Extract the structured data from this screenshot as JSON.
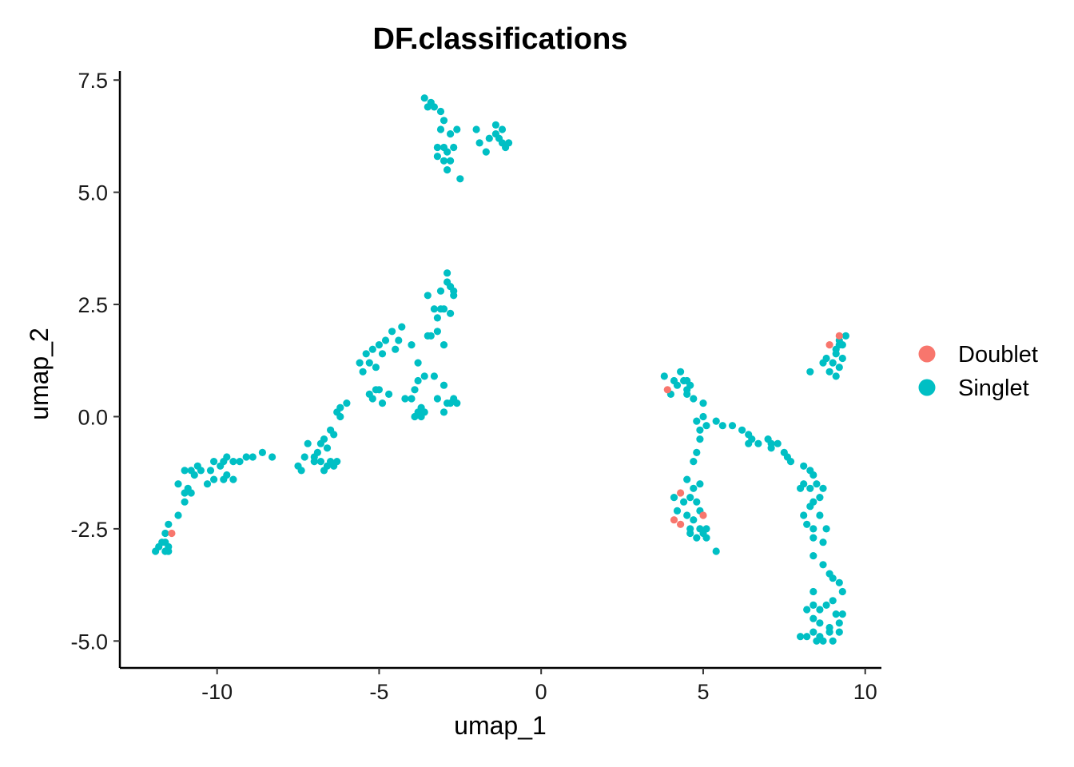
{
  "chart_data": {
    "type": "scatter",
    "title": "DF.classifications",
    "xlabel": "umap_1",
    "ylabel": "umap_2",
    "xlim": [
      -13.0,
      10.5
    ],
    "ylim": [
      -5.6,
      7.7
    ],
    "xticks": [
      -10,
      -5,
      0,
      5,
      10
    ],
    "xtick_labels": [
      "-10",
      "-5",
      "0",
      "5",
      "10"
    ],
    "yticks": [
      -5.0,
      -2.5,
      0.0,
      2.5,
      5.0,
      7.5
    ],
    "ytick_labels": [
      "-5.0",
      "-2.5",
      "0.0",
      "2.5",
      "5.0",
      "7.5"
    ],
    "grid": false,
    "legend_position": "right",
    "series": [
      {
        "name": "Doublet",
        "color": "#F8766D",
        "points": [
          [
            -11.4,
            -2.6
          ],
          [
            3.9,
            0.6
          ],
          [
            9.2,
            1.8
          ],
          [
            8.9,
            1.6
          ],
          [
            4.3,
            -1.7
          ],
          [
            4.1,
            -2.3
          ],
          [
            4.3,
            -2.4
          ],
          [
            5.0,
            -2.2
          ]
        ]
      },
      {
        "name": "Singlet",
        "color": "#00BFC4",
        "points": [
          [
            -3.6,
            7.1
          ],
          [
            -3.4,
            7.0
          ],
          [
            -3.5,
            6.9
          ],
          [
            -3.3,
            6.9
          ],
          [
            -3.1,
            6.8
          ],
          [
            -3.0,
            6.6
          ],
          [
            -3.1,
            6.4
          ],
          [
            -2.8,
            6.3
          ],
          [
            -2.6,
            6.4
          ],
          [
            -3.0,
            6.0
          ],
          [
            -3.2,
            6.0
          ],
          [
            -2.9,
            5.9
          ],
          [
            -2.7,
            6.0
          ],
          [
            -3.2,
            5.8
          ],
          [
            -3.0,
            5.7
          ],
          [
            -2.8,
            5.7
          ],
          [
            -2.9,
            5.5
          ],
          [
            -2.5,
            5.3
          ],
          [
            -2.0,
            6.4
          ],
          [
            -1.9,
            6.1
          ],
          [
            -1.7,
            5.9
          ],
          [
            -1.6,
            6.2
          ],
          [
            -1.4,
            6.3
          ],
          [
            -1.3,
            6.2
          ],
          [
            -1.4,
            6.5
          ],
          [
            -1.2,
            6.1
          ],
          [
            -1.0,
            6.1
          ],
          [
            -1.1,
            6.0
          ],
          [
            -1.2,
            6.4
          ],
          [
            -2.9,
            3.2
          ],
          [
            -2.9,
            3.0
          ],
          [
            -2.8,
            2.9
          ],
          [
            -2.7,
            2.8
          ],
          [
            -3.1,
            2.8
          ],
          [
            -2.7,
            2.7
          ],
          [
            -3.5,
            2.7
          ],
          [
            -3.3,
            2.4
          ],
          [
            -3.1,
            2.4
          ],
          [
            -3.0,
            2.4
          ],
          [
            -2.8,
            2.3
          ],
          [
            -3.2,
            2.2
          ],
          [
            -3.2,
            1.9
          ],
          [
            -3.4,
            1.8
          ],
          [
            -4.3,
            2.0
          ],
          [
            -4.6,
            1.9
          ],
          [
            -4.8,
            1.7
          ],
          [
            -5.0,
            1.6
          ],
          [
            -5.2,
            1.5
          ],
          [
            -5.4,
            1.4
          ],
          [
            -4.4,
            1.7
          ],
          [
            -4.0,
            1.6
          ],
          [
            -3.5,
            1.8
          ],
          [
            -3.0,
            1.6
          ],
          [
            -4.9,
            1.4
          ],
          [
            -5.6,
            1.2
          ],
          [
            -5.3,
            1.2
          ],
          [
            -5.1,
            1.1
          ],
          [
            -5.5,
            1.0
          ],
          [
            -4.5,
            1.5
          ],
          [
            -3.8,
            1.2
          ],
          [
            -3.6,
            0.9
          ],
          [
            -3.8,
            0.8
          ],
          [
            -3.3,
            0.9
          ],
          [
            -3.0,
            0.7
          ],
          [
            -3.9,
            0.6
          ],
          [
            -4.2,
            0.4
          ],
          [
            -4.0,
            0.4
          ],
          [
            -4.7,
            0.5
          ],
          [
            -5.0,
            0.6
          ],
          [
            -5.3,
            0.5
          ],
          [
            -5.1,
            0.6
          ],
          [
            -5.2,
            0.4
          ],
          [
            -4.9,
            0.3
          ],
          [
            -3.6,
            0.1
          ],
          [
            -3.7,
            0.2
          ],
          [
            -3.8,
            0.1
          ],
          [
            -3.9,
            0.0
          ],
          [
            -3.7,
            0.0
          ],
          [
            -2.9,
            0.3
          ],
          [
            -2.8,
            0.3
          ],
          [
            -2.6,
            0.3
          ],
          [
            -3.0,
            0.1
          ],
          [
            -3.2,
            0.4
          ],
          [
            -2.7,
            0.4
          ],
          [
            -6.2,
            0.2
          ],
          [
            -6.0,
            0.3
          ],
          [
            -6.3,
            0.1
          ],
          [
            -6.2,
            0.0
          ],
          [
            -6.5,
            -0.3
          ],
          [
            -6.4,
            -0.4
          ],
          [
            -6.7,
            -0.5
          ],
          [
            -6.8,
            -0.6
          ],
          [
            -6.6,
            -0.7
          ],
          [
            -6.9,
            -0.8
          ],
          [
            -7.2,
            -0.6
          ],
          [
            -7.0,
            -0.9
          ],
          [
            -6.8,
            -1.0
          ],
          [
            -6.6,
            -1.1
          ],
          [
            -6.5,
            -1.0
          ],
          [
            -6.4,
            -1.1
          ],
          [
            -6.7,
            -1.2
          ],
          [
            -6.3,
            -1.0
          ],
          [
            -7.3,
            -0.9
          ],
          [
            -7.0,
            -1.0
          ],
          [
            -7.5,
            -1.1
          ],
          [
            -7.4,
            -1.2
          ],
          [
            -8.3,
            -0.9
          ],
          [
            -8.6,
            -0.8
          ],
          [
            -8.9,
            -0.9
          ],
          [
            -9.1,
            -0.9
          ],
          [
            -9.3,
            -1.0
          ],
          [
            -9.5,
            -1.0
          ],
          [
            -9.7,
            -0.9
          ],
          [
            -9.8,
            -1.0
          ],
          [
            -9.9,
            -1.1
          ],
          [
            -10.1,
            -1.0
          ],
          [
            -10.2,
            -1.2
          ],
          [
            -10.5,
            -1.2
          ],
          [
            -10.6,
            -1.1
          ],
          [
            -10.8,
            -1.2
          ],
          [
            -11.0,
            -1.2
          ],
          [
            -10.7,
            -1.3
          ],
          [
            -9.7,
            -1.3
          ],
          [
            -9.8,
            -1.4
          ],
          [
            -9.5,
            -1.4
          ],
          [
            -10.1,
            -1.4
          ],
          [
            -10.3,
            -1.5
          ],
          [
            -11.2,
            -1.5
          ],
          [
            -11.0,
            -1.7
          ],
          [
            -10.9,
            -1.6
          ],
          [
            -10.8,
            -1.7
          ],
          [
            -11.0,
            -1.9
          ],
          [
            -11.2,
            -2.2
          ],
          [
            -11.5,
            -2.4
          ],
          [
            -11.6,
            -2.6
          ],
          [
            -11.6,
            -2.8
          ],
          [
            -11.5,
            -2.9
          ],
          [
            -11.7,
            -2.8
          ],
          [
            -11.8,
            -2.9
          ],
          [
            -11.6,
            -3.0
          ],
          [
            -11.5,
            -3.0
          ],
          [
            -11.9,
            -3.0
          ],
          [
            3.8,
            0.9
          ],
          [
            4.3,
            1.0
          ],
          [
            4.1,
            0.8
          ],
          [
            4.2,
            0.7
          ],
          [
            4.4,
            0.8
          ],
          [
            4.5,
            0.6
          ],
          [
            4.6,
            0.7
          ],
          [
            4.0,
            0.5
          ],
          [
            4.5,
            0.5
          ],
          [
            4.7,
            0.4
          ],
          [
            4.5,
            0.8
          ],
          [
            5.0,
            0.3
          ],
          [
            4.8,
            -0.1
          ],
          [
            5.0,
            0.0
          ],
          [
            5.1,
            -0.2
          ],
          [
            5.4,
            -0.1
          ],
          [
            5.6,
            -0.2
          ],
          [
            5.9,
            -0.2
          ],
          [
            6.2,
            -0.3
          ],
          [
            6.4,
            -0.4
          ],
          [
            6.5,
            -0.5
          ],
          [
            6.4,
            -0.6
          ],
          [
            6.7,
            -0.6
          ],
          [
            7.0,
            -0.5
          ],
          [
            7.1,
            -0.6
          ],
          [
            7.3,
            -0.6
          ],
          [
            7.1,
            -0.7
          ],
          [
            7.5,
            -0.8
          ],
          [
            7.6,
            -0.9
          ],
          [
            7.7,
            -1.0
          ],
          [
            8.1,
            -1.1
          ],
          [
            8.3,
            -1.2
          ],
          [
            8.4,
            -1.3
          ],
          [
            8.5,
            -1.5
          ],
          [
            8.3,
            -1.6
          ],
          [
            8.1,
            -1.5
          ],
          [
            8.0,
            -1.6
          ],
          [
            8.7,
            -1.6
          ],
          [
            8.6,
            -1.8
          ],
          [
            8.4,
            -1.9
          ],
          [
            8.3,
            -2.0
          ],
          [
            8.1,
            -2.2
          ],
          [
            8.6,
            -2.2
          ],
          [
            8.4,
            -2.5
          ],
          [
            8.8,
            -2.5
          ],
          [
            8.2,
            -2.4
          ],
          [
            8.4,
            -2.7
          ],
          [
            8.7,
            -2.8
          ],
          [
            8.4,
            -3.1
          ],
          [
            8.7,
            -3.3
          ],
          [
            8.9,
            -3.5
          ],
          [
            9.0,
            -3.6
          ],
          [
            9.2,
            -3.7
          ],
          [
            9.3,
            -3.9
          ],
          [
            9.0,
            -4.1
          ],
          [
            8.8,
            -4.2
          ],
          [
            8.6,
            -4.3
          ],
          [
            8.4,
            -4.2
          ],
          [
            8.2,
            -4.3
          ],
          [
            8.4,
            -4.5
          ],
          [
            8.6,
            -4.6
          ],
          [
            8.9,
            -4.7
          ],
          [
            9.2,
            -4.6
          ],
          [
            9.3,
            -4.4
          ],
          [
            8.9,
            -4.8
          ],
          [
            8.6,
            -4.9
          ],
          [
            8.4,
            -4.8
          ],
          [
            8.2,
            -4.9
          ],
          [
            8.5,
            -5.0
          ],
          [
            8.7,
            -5.0
          ],
          [
            9.0,
            -5.0
          ],
          [
            9.2,
            -4.8
          ],
          [
            8.0,
            -4.9
          ],
          [
            9.1,
            -4.4
          ],
          [
            8.4,
            -3.9
          ],
          [
            4.9,
            -0.3
          ],
          [
            4.9,
            -0.5
          ],
          [
            4.8,
            -0.8
          ],
          [
            4.7,
            -1.0
          ],
          [
            4.5,
            -1.4
          ],
          [
            4.9,
            -1.5
          ],
          [
            4.7,
            -1.6
          ],
          [
            4.1,
            -1.8
          ],
          [
            4.4,
            -1.9
          ],
          [
            4.6,
            -1.8
          ],
          [
            4.8,
            -1.9
          ],
          [
            4.9,
            -2.1
          ],
          [
            4.5,
            -2.2
          ],
          [
            4.2,
            -2.1
          ],
          [
            4.7,
            -2.3
          ],
          [
            4.6,
            -2.5
          ],
          [
            4.9,
            -2.5
          ],
          [
            5.1,
            -2.5
          ],
          [
            4.8,
            -2.7
          ],
          [
            5.0,
            -2.6
          ],
          [
            4.6,
            -2.6
          ],
          [
            5.1,
            -2.7
          ],
          [
            5.4,
            -3.0
          ],
          [
            8.3,
            1.0
          ],
          [
            8.7,
            1.2
          ],
          [
            8.8,
            1.3
          ],
          [
            9.1,
            1.4
          ],
          [
            9.2,
            1.7
          ],
          [
            9.4,
            1.8
          ],
          [
            9.3,
            1.6
          ],
          [
            9.1,
            1.5
          ],
          [
            9.0,
            1.2
          ],
          [
            9.2,
            1.1
          ],
          [
            9.1,
            0.9
          ],
          [
            8.9,
            1.0
          ],
          [
            9.3,
            1.3
          ],
          [
            9.2,
            1.6
          ]
        ]
      }
    ]
  }
}
